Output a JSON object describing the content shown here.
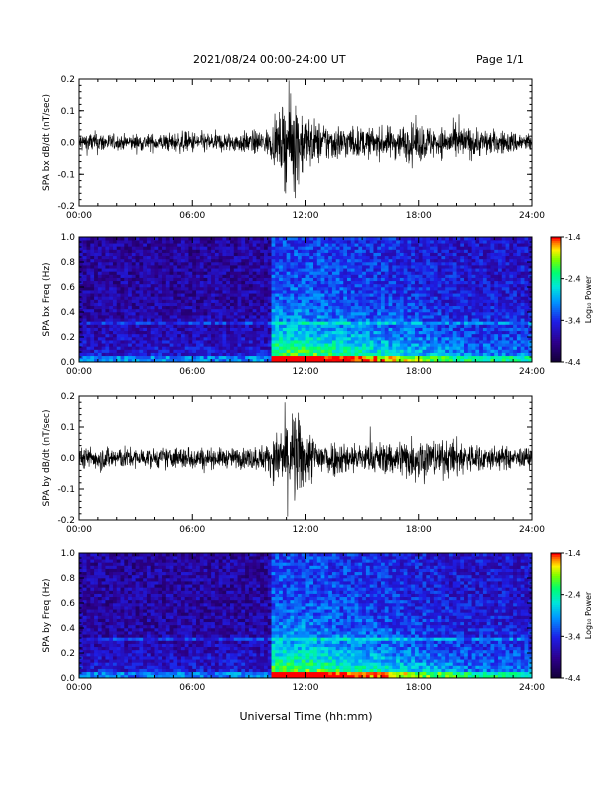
{
  "header": {
    "title": "2021/08/24  00:00-24:00 UT",
    "page": "Page 1/1",
    "xlabel": "Universal Time (hh:mm)"
  },
  "colors": {
    "trace": "#000000",
    "spectrogram_background": "#1a0a55",
    "colorbar": [
      "#000000",
      "#2a0060",
      "#3000c0",
      "#0050ff",
      "#00c8ff",
      "#00ff80",
      "#60ff00",
      "#ffff00",
      "#ff8000",
      "#ff0000"
    ]
  },
  "chart_data": [
    {
      "type": "line",
      "ylabel": "SPA bx dB/dt (nT/sec)",
      "xlim": [
        "00:00",
        "24:00"
      ],
      "ylim": [
        -0.2,
        0.2
      ],
      "x_ticks": [
        "00:00",
        "06:00",
        "12:00",
        "18:00",
        "24:00"
      ],
      "y_ticks": [
        "-0.2",
        "-0.1",
        "0.0",
        "0.1",
        "0.2"
      ],
      "envelope": {
        "x_hours": [
          0,
          1,
          2,
          3,
          4,
          5,
          6,
          7,
          8,
          9,
          10,
          10.5,
          11,
          11.5,
          12,
          12.5,
          13,
          14,
          15,
          16,
          17,
          18,
          19,
          20,
          21,
          22,
          23,
          24
        ],
        "amplitude": [
          0.04,
          0.045,
          0.03,
          0.035,
          0.035,
          0.04,
          0.045,
          0.04,
          0.04,
          0.045,
          0.055,
          0.09,
          0.18,
          0.2,
          0.12,
          0.09,
          0.08,
          0.07,
          0.06,
          0.06,
          0.07,
          0.08,
          0.06,
          0.07,
          0.06,
          0.05,
          0.045,
          0.04
        ]
      }
    },
    {
      "type": "heatmap",
      "ylabel": "SPA bx Freq (Hz)",
      "xlim": [
        "00:00",
        "24:00"
      ],
      "ylim": [
        0.0,
        1.0
      ],
      "x_ticks": [
        "00:00",
        "06:00",
        "12:00",
        "18:00",
        "24:00"
      ],
      "y_ticks": [
        "0.0",
        "0.2",
        "0.4",
        "0.6",
        "0.8",
        "1.0"
      ],
      "colorbar": {
        "label": "Log₁₀ Power",
        "range": [
          -4.4,
          -1.4
        ],
        "ticks": [
          "-1.4",
          "-2.4",
          "-3.4",
          "-4.4"
        ]
      },
      "activity_onset_hour": 10.2
    },
    {
      "type": "line",
      "ylabel": "SPA by dB/dt (nT/sec)",
      "xlim": [
        "00:00",
        "24:00"
      ],
      "ylim": [
        -0.2,
        0.2
      ],
      "x_ticks": [
        "00:00",
        "06:00",
        "12:00",
        "18:00",
        "24:00"
      ],
      "y_ticks": [
        "-0.2",
        "-0.1",
        "0.0",
        "0.1",
        "0.2"
      ],
      "envelope": {
        "x_hours": [
          0,
          1,
          2,
          3,
          4,
          5,
          6,
          7,
          8,
          9,
          10,
          10.5,
          11,
          11.5,
          12,
          12.5,
          13,
          14,
          15,
          16,
          17,
          18,
          19,
          20,
          21,
          22,
          23,
          24
        ],
        "amplitude": [
          0.04,
          0.05,
          0.05,
          0.04,
          0.04,
          0.045,
          0.05,
          0.04,
          0.04,
          0.045,
          0.06,
          0.1,
          0.19,
          0.2,
          0.12,
          0.09,
          0.08,
          0.07,
          0.06,
          0.065,
          0.08,
          0.1,
          0.07,
          0.08,
          0.06,
          0.05,
          0.045,
          0.04
        ]
      }
    },
    {
      "type": "heatmap",
      "ylabel": "SPA by Freq (Hz)",
      "xlim": [
        "00:00",
        "24:00"
      ],
      "ylim": [
        0.0,
        1.0
      ],
      "x_ticks": [
        "00:00",
        "06:00",
        "12:00",
        "18:00",
        "24:00"
      ],
      "y_ticks": [
        "0.0",
        "0.2",
        "0.4",
        "0.6",
        "0.8",
        "1.0"
      ],
      "colorbar": {
        "label": "Log₁₀ Power",
        "range": [
          -4.4,
          -1.4
        ],
        "ticks": [
          "-1.4",
          "-2.4",
          "-3.4",
          "-4.4"
        ]
      },
      "activity_onset_hour": 10.2
    }
  ]
}
